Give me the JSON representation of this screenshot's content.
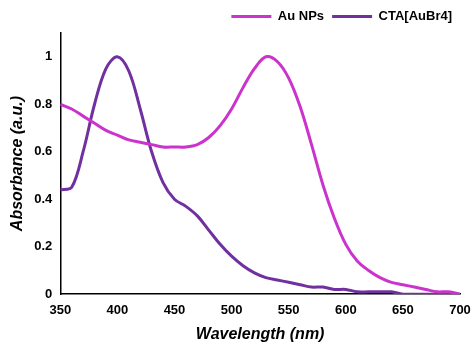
{
  "chart_data": {
    "type": "line",
    "x_label": "Wavelength (nm)",
    "y_label": "Absorbance (a.u.)",
    "x": [
      350,
      360,
      370,
      380,
      390,
      400,
      410,
      420,
      430,
      440,
      450,
      460,
      470,
      480,
      490,
      500,
      510,
      520,
      530,
      540,
      550,
      560,
      570,
      580,
      590,
      600,
      610,
      620,
      630,
      640,
      650,
      660,
      670,
      680,
      690,
      700
    ],
    "series": [
      {
        "name": "Au NPs",
        "color": "#cc33cc",
        "values": [
          0.8,
          0.78,
          0.75,
          0.72,
          0.69,
          0.67,
          0.65,
          0.64,
          0.63,
          0.62,
          0.62,
          0.62,
          0.63,
          0.66,
          0.71,
          0.78,
          0.87,
          0.95,
          1.0,
          0.98,
          0.91,
          0.79,
          0.63,
          0.46,
          0.32,
          0.21,
          0.14,
          0.1,
          0.07,
          0.05,
          0.04,
          0.03,
          0.02,
          0.01,
          0.01,
          0.0
        ]
      },
      {
        "name": "CTA[AuBr4]",
        "color": "#7030a0",
        "values": [
          0.44,
          0.45,
          0.6,
          0.8,
          0.95,
          1.0,
          0.94,
          0.78,
          0.6,
          0.47,
          0.4,
          0.37,
          0.33,
          0.27,
          0.21,
          0.16,
          0.12,
          0.09,
          0.07,
          0.06,
          0.05,
          0.04,
          0.03,
          0.03,
          0.02,
          0.02,
          0.01,
          0.01,
          0.01,
          0.01,
          0.0,
          0.0,
          0.0,
          0.0,
          0.0,
          0.0
        ]
      }
    ],
    "xlim": [
      350,
      700
    ],
    "xticks": [
      350,
      400,
      450,
      500,
      550,
      600,
      650,
      700
    ],
    "ylim": [
      0,
      1.1
    ],
    "yticks": [
      0,
      0.2,
      0.4,
      0.6,
      0.8,
      1
    ],
    "grid": false,
    "legend": "upper right"
  }
}
